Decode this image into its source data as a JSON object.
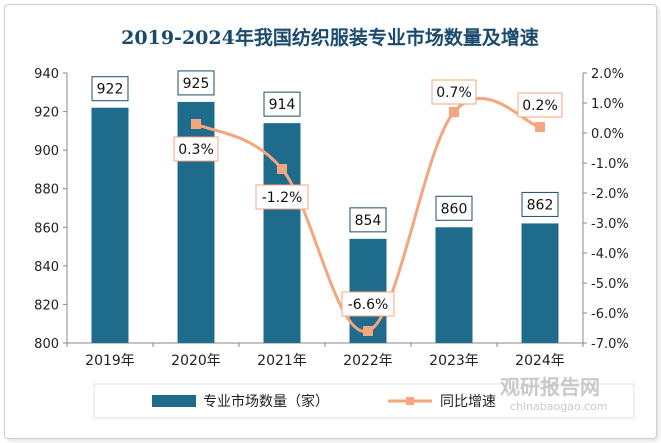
{
  "chart_data": {
    "type": "bar",
    "title": "2019-2024年我国纺织服装专业市场数量及增速",
    "categories": [
      "2019年",
      "2020年",
      "2021年",
      "2022年",
      "2023年",
      "2024年"
    ],
    "series": [
      {
        "name": "专业市场数量（家）",
        "type": "bar",
        "axis": "left",
        "values": [
          922,
          925,
          914,
          854,
          860,
          862
        ],
        "labels": [
          "922",
          "925",
          "914",
          "854",
          "860",
          "862"
        ]
      },
      {
        "name": "同比增速",
        "type": "line",
        "axis": "right",
        "values": [
          null,
          0.3,
          -1.2,
          -6.6,
          0.7,
          0.2
        ],
        "labels": [
          "",
          "0.3%",
          "-1.2%",
          "-6.6%",
          "0.7%",
          "0.2%"
        ]
      }
    ],
    "ylim_left": [
      800,
      940
    ],
    "yticks_left": [
      "800",
      "820",
      "840",
      "860",
      "880",
      "900",
      "920",
      "940"
    ],
    "ylim_right": [
      -7.0,
      2.0
    ],
    "yticks_right": [
      "-7.0%",
      "-6.0%",
      "-5.0%",
      "-4.0%",
      "-3.0%",
      "-2.0%",
      "-1.0%",
      "0.0%",
      "1.0%",
      "2.0%"
    ],
    "legend_position": "bottom",
    "colors": {
      "bar": "#1f6b8c",
      "line": "#f4a67e",
      "title": "#1a4a6e"
    }
  },
  "watermark": {
    "brand": "观研报告网",
    "url": "chinabaogao.com"
  }
}
